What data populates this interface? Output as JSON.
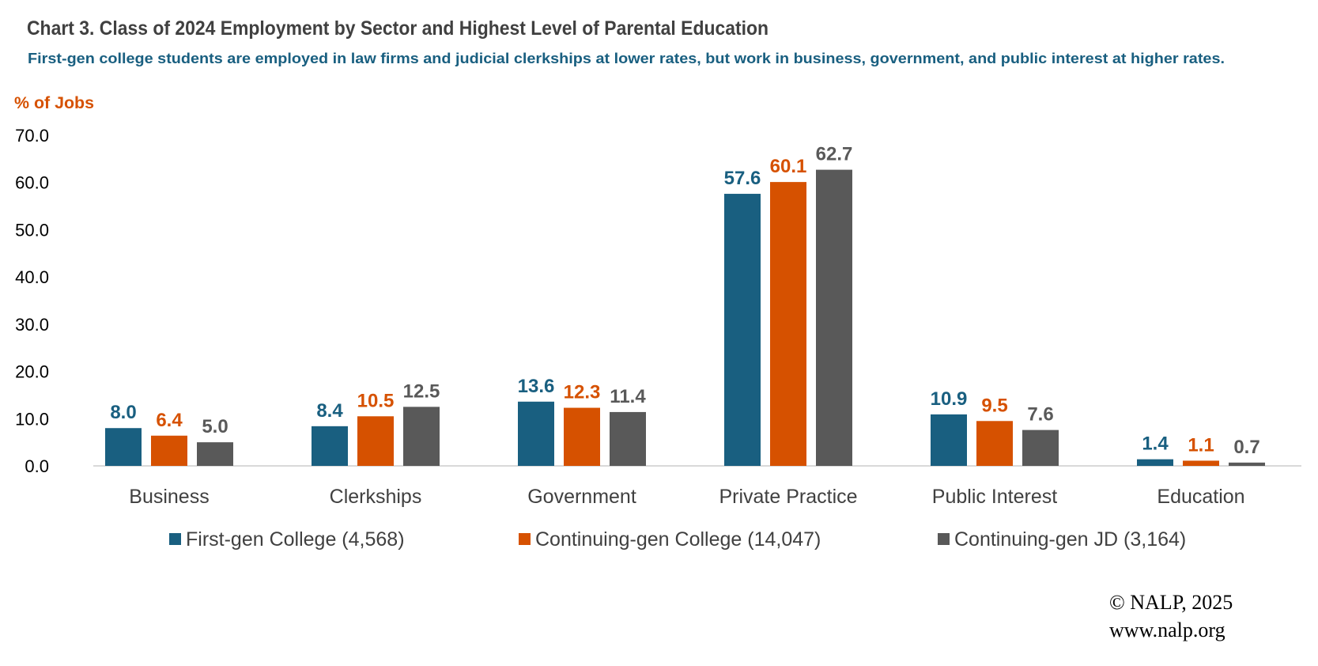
{
  "chart_data": {
    "type": "bar",
    "title": "Chart 3. Class of 2024 Employment by Sector and Highest Level of Parental Education",
    "subtitle": "First-gen college students are employed in law firms and judicial clerkships at lower rates, but work in business, government, and public interest at higher rates.",
    "ylabel": "% of Jobs",
    "xlabel": "",
    "ylim": [
      0,
      70
    ],
    "yticks": [
      "0.0",
      "10.0",
      "20.0",
      "30.0",
      "40.0",
      "50.0",
      "60.0",
      "70.0"
    ],
    "grid": false,
    "legend_position": "bottom",
    "categories": [
      "Business",
      "Clerkships",
      "Government",
      "Private Practice",
      "Public Interest",
      "Education"
    ],
    "series": [
      {
        "name": "First-gen College (4,568)",
        "color": "#195f80",
        "values": [
          8.0,
          8.4,
          13.6,
          57.6,
          10.9,
          1.4
        ]
      },
      {
        "name": "Continuing-gen College (14,047)",
        "color": "#d65100",
        "values": [
          6.4,
          10.5,
          12.3,
          60.1,
          9.5,
          1.1
        ]
      },
      {
        "name": "Continuing-gen JD (3,164)",
        "color": "#595959",
        "values": [
          5.0,
          12.5,
          11.4,
          62.7,
          7.6,
          0.7
        ]
      }
    ],
    "colors": {
      "title": "#404040",
      "subtitle": "#195f80",
      "ylabel": "#d65100",
      "axis": "#d9d9d9"
    }
  },
  "footer": {
    "copyright": "© NALP, 2025",
    "website": "www.nalp.org"
  }
}
